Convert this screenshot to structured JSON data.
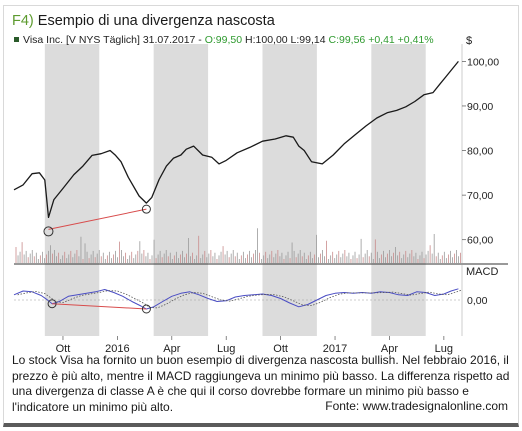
{
  "figure": {
    "label": "F4)",
    "title": "Esempio di una divergenza nascosta",
    "caption": "Lo stock Visa ha fornito un buon esempio di divergenza nascosta bullish. Nel febbraio 2016, il prezzo è più alto, mentre il MACD raggiungeva un minimo più basso. La differenza rispetto ad una divergenza di classe A è che qui il corso dovrebbe formare un minimo più basso e l'indicatore un minimo più alto.",
    "source": "Fonte: www.tradesignalonline.com"
  },
  "colors": {
    "shade": "#dcdcdc",
    "price_line": "#1a1a1a",
    "macd": "#4a4dc4",
    "signal": "#555555",
    "divergence": "#d84c4c",
    "accent": "#5d9b2f",
    "quote_green": "#2f9a2f"
  },
  "chart_data": [
    {
      "type": "line",
      "header": {
        "symbol": "Visa Inc. [V NYS  Täglich] 31.07.2017",
        "open": "O:99,50",
        "high": "H:100,00",
        "low": "L:99,14",
        "close": "C:99,56",
        "change": "+0,41",
        "change_pct": "+0,41%"
      },
      "unit_label": "$",
      "y_ticks": [
        "100,00",
        "90,00",
        "80,00",
        "70,00",
        "60,00"
      ],
      "y_tick_values": [
        100,
        90,
        80,
        70,
        60
      ],
      "ylim": [
        55,
        103
      ],
      "x_tick_labels": [
        "Ott",
        "2016",
        "Apr",
        "Lug",
        "Ott",
        "2017",
        "Apr",
        "Lug"
      ],
      "x_tick_months": [
        9,
        12,
        15,
        18,
        21,
        24,
        27,
        30
      ],
      "xlim_months": [
        6.3,
        31.0
      ],
      "shaded_month_ranges": [
        [
          8,
          11
        ],
        [
          14,
          17
        ],
        [
          20,
          23
        ],
        [
          26,
          29
        ]
      ],
      "series": [
        {
          "x_months": [
            6.3,
            6.8,
            7.3,
            7.7,
            8.0,
            8.2,
            8.5,
            9.0,
            9.6,
            10.1,
            10.6,
            11.1,
            11.6,
            11.9,
            12.2,
            12.6,
            13.2,
            13.6,
            13.9,
            14.3,
            14.7,
            15.1,
            15.5,
            15.8,
            16.2,
            16.7,
            17.2,
            17.6,
            18.0,
            18.6,
            19.3,
            20.0,
            20.7,
            21.3,
            21.7,
            22.0,
            22.3,
            22.7,
            23.3,
            23.9,
            24.5,
            25.1,
            25.7,
            26.3,
            26.9,
            27.4,
            27.9,
            28.4,
            28.9,
            29.4,
            29.8,
            30.1,
            30.5,
            30.8
          ],
          "values": [
            71.2,
            72.3,
            74.8,
            75.0,
            73.4,
            65.0,
            69.0,
            71.5,
            74.6,
            76.5,
            78.9,
            79.3,
            80.0,
            78.9,
            77.5,
            74.0,
            69.8,
            68.2,
            69.5,
            73.5,
            76.5,
            78.3,
            79.0,
            80.3,
            81.0,
            79.0,
            78.5,
            77.0,
            77.8,
            79.5,
            80.7,
            82.1,
            82.6,
            83.3,
            83.0,
            81.0,
            80.0,
            77.5,
            77.0,
            79.0,
            81.5,
            83.5,
            85.5,
            87.3,
            88.5,
            89.0,
            89.8,
            91.0,
            92.5,
            93.0,
            95.0,
            96.5,
            98.5,
            100.0
          ]
        }
      ],
      "volume_scale_note": "",
      "divergence_points": [
        {
          "x_month": 8.2,
          "value": 65.0
        },
        {
          "x_month": 13.6,
          "value": 68.2
        }
      ]
    },
    {
      "type": "line",
      "title": "MACD",
      "y_ticks": [
        "0,00"
      ],
      "y_tick_values": [
        0
      ],
      "ylim": [
        -1.2,
        1.2
      ],
      "x_tick_labels": [
        "Ott",
        "2016",
        "Apr",
        "Lug",
        "Ott",
        "2017",
        "Apr",
        "Lug"
      ],
      "series": [
        {
          "name": "",
          "x_months": [
            6.3,
            6.8,
            7.3,
            7.8,
            8.1,
            8.4,
            8.8,
            9.3,
            9.8,
            10.3,
            10.8,
            11.3,
            11.8,
            12.3,
            12.8,
            13.3,
            13.6,
            14.0,
            14.5,
            15.0,
            15.5,
            16.0,
            16.5,
            17.0,
            17.5,
            18.0,
            18.5,
            19.0,
            19.5,
            20.0,
            20.5,
            21.0,
            21.5,
            22.0,
            22.5,
            23.0,
            23.5,
            24.0,
            24.5,
            25.0,
            25.5,
            26.0,
            26.5,
            27.0,
            27.5,
            28.0,
            28.5,
            29.0,
            29.5,
            30.0,
            30.4,
            30.8
          ],
          "values": [
            0.35,
            0.6,
            0.55,
            0.3,
            0.05,
            -0.25,
            -0.1,
            0.25,
            0.35,
            0.45,
            0.55,
            0.7,
            0.5,
            0.25,
            -0.1,
            -0.4,
            -0.6,
            -0.45,
            -0.1,
            0.25,
            0.45,
            0.55,
            0.35,
            0.1,
            -0.1,
            -0.05,
            0.2,
            0.3,
            0.35,
            0.4,
            0.3,
            0.1,
            -0.2,
            -0.45,
            -0.3,
            0.0,
            0.3,
            0.45,
            0.5,
            0.45,
            0.5,
            0.45,
            0.55,
            0.5,
            0.35,
            0.3,
            0.55,
            0.5,
            0.3,
            0.4,
            0.6,
            0.75
          ]
        }
      ],
      "divergence_points": [
        {
          "x_month": 8.4,
          "value": -0.25
        },
        {
          "x_month": 13.6,
          "value": -0.6
        }
      ]
    }
  ]
}
